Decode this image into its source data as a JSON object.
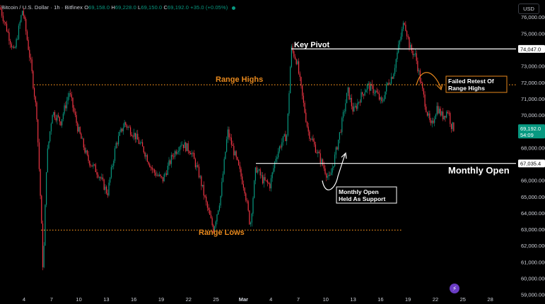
{
  "header": {
    "symbol": "Bitcoin / U.S. Dollar · 1h · Bitfinex",
    "open_label": "O",
    "open": "69,158.0",
    "high_label": "H",
    "high": "69,228.0",
    "low_label": "L",
    "low": "69,150.0",
    "close_label": "C",
    "close": "69,192.0",
    "change": "+35.0 (+0.05%)"
  },
  "currency_button": "USD",
  "tv_icon": "tradingview-logo-icon",
  "colors": {
    "background": "#000000",
    "up": "#089981",
    "down": "#f23645",
    "annotation_orange": "#e8891d",
    "white": "#ffffff",
    "axis_text": "#d1d4dc"
  },
  "chart_data": {
    "type": "candlestick",
    "instrument": "BTCUSD",
    "timeframe": "1h",
    "x_ticks": [
      "4",
      "7",
      "10",
      "13",
      "16",
      "19",
      "22",
      "25",
      "Mar",
      "4",
      "7",
      "10",
      "13",
      "16",
      "19",
      "22",
      "25",
      "28"
    ],
    "y_ticks": [
      59000,
      60000,
      61000,
      62000,
      63000,
      64000,
      65000,
      66000,
      67000,
      68000,
      69000,
      70000,
      71000,
      72000,
      73000,
      74000,
      75000,
      76000
    ],
    "ylim": [
      58900,
      76700
    ],
    "price_labels": [
      {
        "value": 74047.0,
        "text": "74,047.0",
        "style": "white"
      },
      {
        "value": 69192.0,
        "text": "69,192.0",
        "style": "green",
        "countdown": "54:09"
      },
      {
        "value": 67035.4,
        "text": "67,035.4",
        "style": "white"
      }
    ],
    "horizontal_levels": [
      {
        "label": "Key Pivot",
        "value": 74047,
        "style": "solid-white"
      },
      {
        "label": "Range Highs",
        "value": 71850,
        "style": "dotted-orange"
      },
      {
        "label": "Monthly Open",
        "value": 67035.4,
        "style": "solid-white"
      },
      {
        "label": "Range Lows",
        "value": 62950,
        "style": "dotted-orange"
      }
    ],
    "annotations": [
      {
        "text_lines": [
          "Monthly Open",
          "Held As Support"
        ],
        "color": "white"
      },
      {
        "text_lines": [
          "Failed Retest Of",
          "Range Highs"
        ],
        "color": "orange"
      }
    ],
    "price_path": [
      [
        0,
        76600
      ],
      [
        20,
        73800
      ],
      [
        32,
        76500
      ],
      [
        44,
        73000
      ],
      [
        52,
        70000
      ],
      [
        58,
        64200
      ],
      [
        61,
        60200
      ],
      [
        66,
        67300
      ],
      [
        74,
        70200
      ],
      [
        86,
        69600
      ],
      [
        98,
        71400
      ],
      [
        110,
        69200
      ],
      [
        124,
        67300
      ],
      [
        138,
        66500
      ],
      [
        152,
        65200
      ],
      [
        164,
        68200
      ],
      [
        176,
        69500
      ],
      [
        190,
        68800
      ],
      [
        204,
        67800
      ],
      [
        216,
        66600
      ],
      [
        230,
        66000
      ],
      [
        244,
        67500
      ],
      [
        256,
        68300
      ],
      [
        270,
        67800
      ],
      [
        282,
        66300
      ],
      [
        292,
        64500
      ],
      [
        302,
        63000
      ],
      [
        312,
        65000
      ],
      [
        322,
        69000
      ],
      [
        334,
        67300
      ],
      [
        346,
        65500
      ],
      [
        354,
        63200
      ],
      [
        362,
        66800
      ],
      [
        372,
        66000
      ],
      [
        382,
        65700
      ],
      [
        390,
        67400
      ],
      [
        398,
        68300
      ],
      [
        406,
        68800
      ],
      [
        412,
        74100
      ],
      [
        420,
        73300
      ],
      [
        428,
        71000
      ],
      [
        436,
        69000
      ],
      [
        446,
        68000
      ],
      [
        456,
        67000
      ],
      [
        466,
        66000
      ],
      [
        474,
        67500
      ],
      [
        484,
        69600
      ],
      [
        492,
        71500
      ],
      [
        500,
        70200
      ],
      [
        510,
        71100
      ],
      [
        520,
        71800
      ],
      [
        532,
        71400
      ],
      [
        540,
        70700
      ],
      [
        548,
        71900
      ],
      [
        556,
        72500
      ],
      [
        564,
        74200
      ],
      [
        572,
        75800
      ],
      [
        580,
        74100
      ],
      [
        588,
        73600
      ],
      [
        596,
        71800
      ],
      [
        604,
        70200
      ],
      [
        610,
        69200
      ],
      [
        618,
        70500
      ],
      [
        626,
        69900
      ],
      [
        634,
        70300
      ],
      [
        638,
        69400
      ],
      [
        642,
        69192
      ]
    ]
  },
  "labels": {
    "key_pivot": "Key Pivot",
    "range_highs": "Range Highs",
    "range_lows": "Range Lows",
    "monthly_open": "Monthly Open",
    "held_1": "Monthly Open",
    "held_2": "Held As Support",
    "failed_1": "Failed Retest Of",
    "failed_2": "Range Highs"
  }
}
